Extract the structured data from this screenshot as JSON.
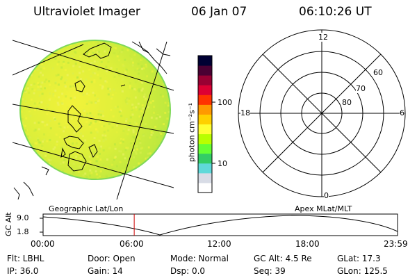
{
  "header": {
    "title": "Ultraviolet Imager",
    "date": "06 Jan 07",
    "time": "06:10:26 UT"
  },
  "colorbar": {
    "unit_label": "photon cm⁻²s⁻¹",
    "ticks": [
      {
        "value": 100,
        "label": "100"
      },
      {
        "value": 10,
        "label": "10"
      }
    ],
    "colors": [
      "#ffffff",
      "#d8dce6",
      "#5fd9d9",
      "#33cc66",
      "#66ff33",
      "#b9ff00",
      "#ffff33",
      "#ffd000",
      "#ff9900",
      "#ff3300",
      "#dd0033",
      "#990033",
      "#4a0033",
      "#000033"
    ]
  },
  "polar_plot": {
    "mlt_labels": {
      "top": "12",
      "bottom": "0",
      "left": "18",
      "right": "6"
    },
    "lat_labels": [
      "60",
      "70",
      "80"
    ]
  },
  "timeline": {
    "left_caption": "Geographic Lat/Lon",
    "right_caption": "Apex MLat/MLT",
    "y_axis_title": "GC Alt",
    "y_ticks": [
      "9.0",
      "1.8"
    ],
    "x_ticks": [
      "00:00",
      "06:00",
      "12:00",
      "18:00",
      "23:59"
    ],
    "current_time_hours": 6.17
  },
  "info": {
    "filter": "Flt:  LBHL",
    "ip": "IP:  36.0",
    "door": "Door:  Open",
    "gain": "Gain:  14",
    "mode": "Mode:  Normal",
    "dsp": "Dsp:        0.0",
    "gc_alt": "GC Alt:  4.5 Re",
    "seq": "Seq:  39",
    "glat": "GLat:     17.3",
    "glon": "GLon:  125.5"
  },
  "colors": {
    "disk_base": "#d2ec3c",
    "red_marker": "#cc0000"
  }
}
